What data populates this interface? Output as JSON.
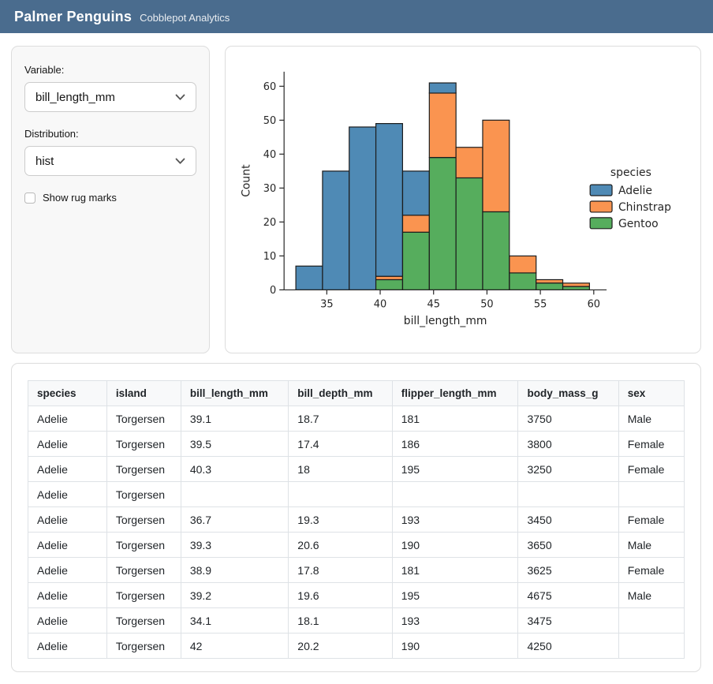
{
  "header": {
    "title": "Palmer Penguins",
    "subtitle": "Cobblepot Analytics"
  },
  "colors": {
    "header_bg": "#4a6c8e",
    "adelie": "#4f8ab5",
    "chinstrap": "#fa9450",
    "gentoo": "#56ad5d",
    "bar_edge": "#1c1c1c",
    "axis": "#262626"
  },
  "sidebar": {
    "variable_label": "Variable:",
    "variable_value": "bill_length_mm",
    "distribution_label": "Distribution:",
    "distribution_value": "hist",
    "rug_label": "Show rug marks",
    "rug_checked": false
  },
  "chart_data": {
    "type": "bar",
    "subtype": "stacked-histogram",
    "title": "",
    "xlabel": "bill_length_mm",
    "ylabel": "Count",
    "bin_edges": [
      32.1,
      34.6,
      37.1,
      39.6,
      42.1,
      44.6,
      47.1,
      49.6,
      52.1,
      54.6,
      57.1,
      59.6
    ],
    "series": [
      {
        "name": "Adelie",
        "color": "#4f8ab5",
        "values": [
          7,
          35,
          48,
          45,
          13,
          3,
          0,
          0,
          0,
          0,
          0
        ]
      },
      {
        "name": "Chinstrap",
        "color": "#fa9450",
        "values": [
          0,
          0,
          0,
          1,
          5,
          19,
          9,
          27,
          5,
          1,
          1
        ]
      },
      {
        "name": "Gentoo",
        "color": "#56ad5d",
        "values": [
          0,
          0,
          0,
          3,
          17,
          39,
          33,
          23,
          5,
          2,
          1
        ]
      }
    ],
    "stack_order": [
      "Gentoo",
      "Chinstrap",
      "Adelie"
    ],
    "bin_totals": [
      7,
      35,
      48,
      49,
      35,
      61,
      42,
      50,
      10,
      3,
      2
    ],
    "x_ticks": [
      35,
      40,
      45,
      50,
      55,
      60
    ],
    "y_ticks": [
      0,
      10,
      20,
      30,
      40,
      50,
      60
    ],
    "xlim": [
      31.0,
      61.2
    ],
    "ylim": [
      0,
      64.3
    ],
    "grid": false,
    "legend": {
      "title": "species",
      "entries": [
        "Adelie",
        "Chinstrap",
        "Gentoo"
      ],
      "position": "right"
    }
  },
  "table": {
    "columns": [
      "species",
      "island",
      "bill_length_mm",
      "bill_depth_mm",
      "flipper_length_mm",
      "body_mass_g",
      "sex"
    ],
    "rows": [
      [
        "Adelie",
        "Torgersen",
        "39.1",
        "18.7",
        "181",
        "3750",
        "Male"
      ],
      [
        "Adelie",
        "Torgersen",
        "39.5",
        "17.4",
        "186",
        "3800",
        "Female"
      ],
      [
        "Adelie",
        "Torgersen",
        "40.3",
        "18",
        "195",
        "3250",
        "Female"
      ],
      [
        "Adelie",
        "Torgersen",
        "",
        "",
        "",
        "",
        ""
      ],
      [
        "Adelie",
        "Torgersen",
        "36.7",
        "19.3",
        "193",
        "3450",
        "Female"
      ],
      [
        "Adelie",
        "Torgersen",
        "39.3",
        "20.6",
        "190",
        "3650",
        "Male"
      ],
      [
        "Adelie",
        "Torgersen",
        "38.9",
        "17.8",
        "181",
        "3625",
        "Female"
      ],
      [
        "Adelie",
        "Torgersen",
        "39.2",
        "19.6",
        "195",
        "4675",
        "Male"
      ],
      [
        "Adelie",
        "Torgersen",
        "34.1",
        "18.1",
        "193",
        "3475",
        ""
      ],
      [
        "Adelie",
        "Torgersen",
        "42",
        "20.2",
        "190",
        "4250",
        ""
      ]
    ]
  }
}
